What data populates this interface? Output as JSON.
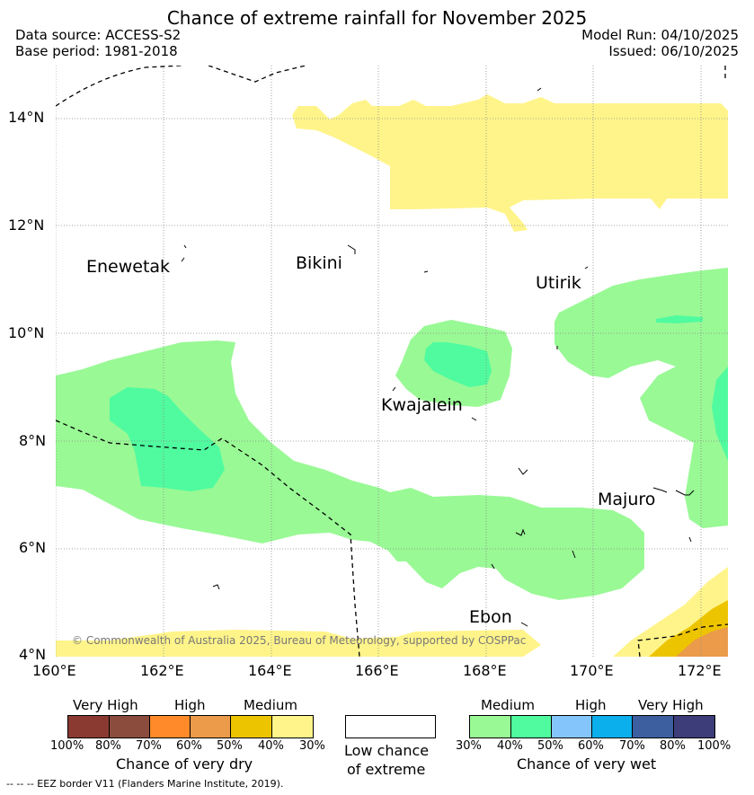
{
  "title": "Chance of extreme rainfall for November 2025",
  "data_source": "Data source: ACCESS-S2",
  "base_period": "Base period: 1981-2018",
  "model_run": "Model Run: 04/10/2025",
  "issued": "Issued: 06/10/2025",
  "map": {
    "lat_labels": [
      "14°N",
      "12°N",
      "10°N",
      "8°N",
      "6°N",
      "4°N"
    ],
    "lon_labels": [
      "160°E",
      "162°E",
      "164°E",
      "166°E",
      "168°E",
      "170°E",
      "172°E"
    ],
    "places": {
      "enewetak": "Enewetak",
      "bikini": "Bikini",
      "utirik": "Utirik",
      "kwajalein": "Kwajalein",
      "majuro": "Majuro",
      "ebon": "Ebon"
    },
    "copyright": "© Commonwealth of Australia 2025, Bureau of Meteorology, supported by COSPPac"
  },
  "legend": {
    "dry": {
      "categories": [
        "Very High",
        "High",
        "Medium"
      ],
      "ticks": [
        "100%",
        "80%",
        "70%",
        "60%",
        "50%",
        "40%",
        "30%"
      ],
      "colors": [
        "#8b3a32",
        "#8b4c3e",
        "#ff8a2a",
        "#eb9b4a",
        "#edc400",
        "#fff48a"
      ],
      "title": "Chance of very dry"
    },
    "low": {
      "line1": "Low chance",
      "line2": "of extreme",
      "color": "#ffffff"
    },
    "wet": {
      "categories": [
        "Medium",
        "High",
        "Very High"
      ],
      "ticks": [
        "30%",
        "40%",
        "50%",
        "60%",
        "70%",
        "80%",
        "100%"
      ],
      "colors": [
        "#99f995",
        "#50fb9f",
        "#84c6fc",
        "#0aafec",
        "#3d5fa0",
        "#3d3d7a"
      ],
      "title": "Chance of very wet"
    }
  },
  "footnote": "--  --  -- EEZ border V11 (Flanders Marine Institute, 2019)."
}
